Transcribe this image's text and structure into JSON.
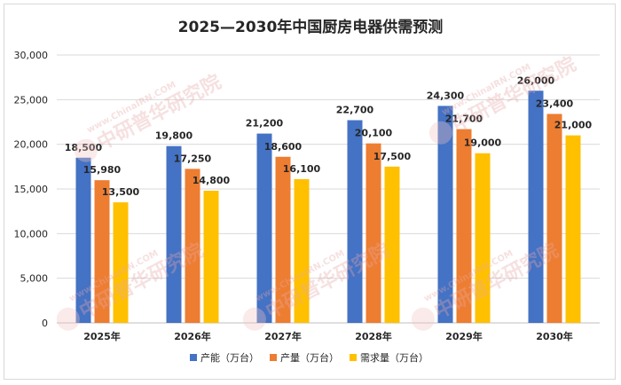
{
  "chart_data": {
    "type": "bar",
    "title": "2025—2030年中国厨房电器供需预测",
    "categories": [
      "2025年",
      "2026年",
      "2027年",
      "2028年",
      "2029年",
      "2030年"
    ],
    "series": [
      {
        "name": "产能（万台）",
        "color": "#4472c4",
        "values": [
          18500,
          19800,
          21200,
          22700,
          24300,
          26000
        ],
        "labels": [
          "18,500",
          "19,800",
          "21,200",
          "22,700",
          "24,300",
          "26,000"
        ]
      },
      {
        "name": "产量（万台）",
        "color": "#ed7d31",
        "values": [
          15980,
          17250,
          18600,
          20100,
          21700,
          23400
        ],
        "labels": [
          "15,980",
          "17,250",
          "18,600",
          "20,100",
          "21,700",
          "23,400"
        ]
      },
      {
        "name": "需求量（万台）",
        "color": "#ffc000",
        "values": [
          13500,
          14800,
          16100,
          17500,
          19000,
          21000
        ],
        "labels": [
          "13,500",
          "14,800",
          "16,100",
          "17,500",
          "19,000",
          "21,000"
        ]
      }
    ],
    "ylim": [
      0,
      30000
    ],
    "yticks": [
      "0",
      "5,000",
      "10,000",
      "15,000",
      "20,000",
      "25,000",
      "30,000"
    ],
    "grid": true,
    "legend_position": "bottom"
  },
  "watermark": {
    "text": "中研普华研究院",
    "url_text": "www.ChinaIRN.COM",
    "logo_text": "CIRN"
  }
}
